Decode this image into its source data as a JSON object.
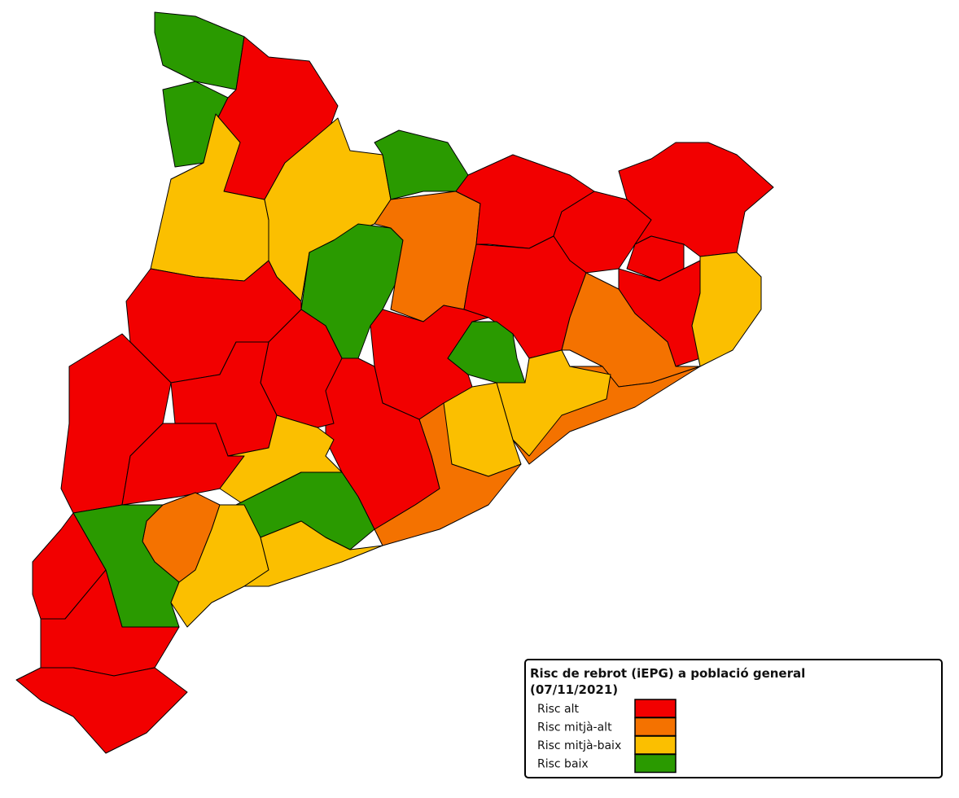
{
  "legend": {
    "title": "Risc de rebrot (iEPG) a població general",
    "date": "(07/11/2021)",
    "items": [
      {
        "label": "Risc alt",
        "color": "#f20000"
      },
      {
        "label": "Risc mitjà-alt",
        "color": "#f47200"
      },
      {
        "label": "Risc mitjà-baix",
        "color": "#fbbf00"
      },
      {
        "label": "Risc baix",
        "color": "#2a9a00"
      }
    ]
  }
}
